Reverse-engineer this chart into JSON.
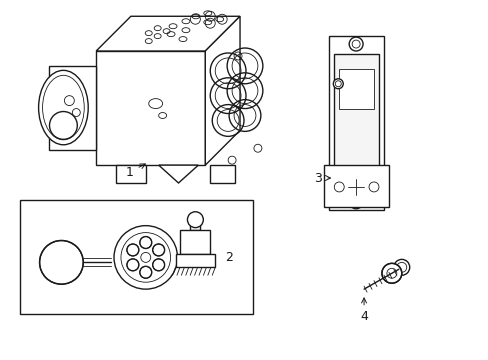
{
  "bg_color": "#ffffff",
  "line_color": "#1a1a1a",
  "line_width": 1.0,
  "thin_line": 0.6,
  "fig_width": 4.89,
  "fig_height": 3.6,
  "dpi": 100
}
